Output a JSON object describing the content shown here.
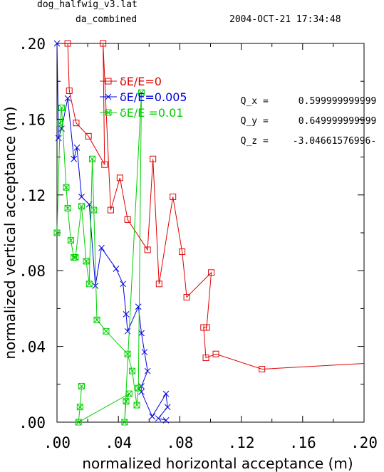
{
  "header": {
    "file": "dog_halfwig_v3.lat",
    "subtitle": "da_combined",
    "timestamp": "2004-OCT-21 17:34:48"
  },
  "tunes": [
    {
      "label": "Q_x =",
      "value": "0.599999999999"
    },
    {
      "label": "Q_y =",
      "value": "0.649999999999"
    },
    {
      "label": "Q_z =",
      "value": "-3.04661576996-"
    }
  ],
  "chart_data": {
    "type": "line",
    "xlabel": "normalized horizontal acceptance (m)",
    "ylabel": "normalized vertical acceptance (m)",
    "xlim": [
      0,
      0.2
    ],
    "ylim": [
      0,
      0.2
    ],
    "xticks": [
      ".00",
      ".04",
      ".08",
      ".12",
      ".16",
      ".20"
    ],
    "yticks": [
      ".00",
      ".04",
      ".08",
      ".12",
      ".16",
      ".20"
    ],
    "grid": false,
    "legend_position": "top-left inside",
    "series": [
      {
        "name": "δE/E=0",
        "color": "#e00000",
        "marker": "square",
        "x": [
          0.007,
          0.008,
          0.0125,
          0.0205,
          0.031,
          0.03,
          0.035,
          0.041,
          0.046,
          0.059,
          0.0625,
          0.0665,
          0.0755,
          0.0815,
          0.0845,
          0.1005,
          0.0975,
          0.0955,
          0.097,
          0.1035,
          0.1335,
          0.2
        ],
        "y": [
          0.2,
          0.175,
          0.158,
          0.151,
          0.136,
          0.2,
          0.112,
          0.129,
          0.107,
          0.091,
          0.139,
          0.073,
          0.119,
          0.09,
          0.066,
          0.079,
          0.05,
          0.05,
          0.034,
          0.036,
          0.028,
          0.031
        ]
      },
      {
        "name": "δE/E=0.005",
        "color": "#0000e0",
        "marker": "x",
        "x": [
          0.0,
          0.001,
          0.003,
          0.007,
          0.011,
          0.013,
          0.016,
          0.021,
          0.025,
          0.029,
          0.0385,
          0.043,
          0.045,
          0.046,
          0.053,
          0.055,
          0.057,
          0.059,
          0.055,
          0.055,
          0.062,
          0.071,
          0.072,
          0.066,
          0.071
        ],
        "y": [
          0.2,
          0.15,
          0.155,
          0.171,
          0.139,
          0.145,
          0.119,
          0.115,
          0.072,
          0.092,
          0.081,
          0.073,
          0.057,
          0.048,
          0.061,
          0.047,
          0.037,
          0.027,
          0.019,
          0.016,
          0.003,
          0.015,
          0.008,
          0.002,
          0.001
        ]
      },
      {
        "name": "δE/E =0.01",
        "color": "#00d000",
        "marker": "square",
        "x": [
          0.0,
          0.002,
          0.003,
          0.006,
          0.007,
          0.009,
          0.011,
          0.012,
          0.016,
          0.019,
          0.021,
          0.023,
          0.024,
          0.026,
          0.032,
          0.046,
          0.049,
          0.052,
          0.053,
          0.055,
          0.044,
          0.045,
          0.047,
          0.014,
          0.015,
          0.016
        ],
        "y": [
          0.1,
          0.158,
          0.166,
          0.124,
          0.113,
          0.096,
          0.087,
          0.087,
          0.114,
          0.085,
          0.073,
          0.139,
          0.112,
          0.054,
          0.048,
          0.036,
          0.027,
          0.009,
          0.018,
          0.174,
          0.0,
          0.011,
          0.015,
          0.0,
          0.008,
          0.019
        ]
      }
    ]
  }
}
